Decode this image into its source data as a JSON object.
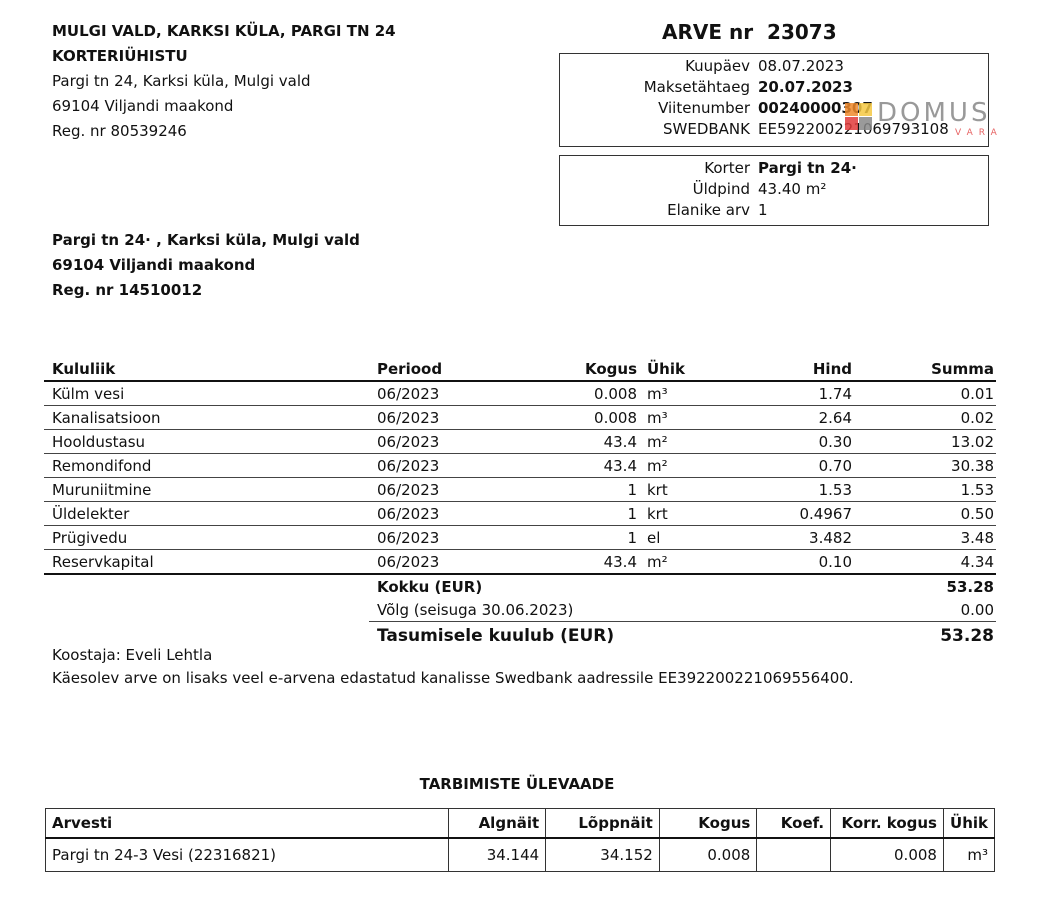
{
  "sender": {
    "name_line1": "MULGI VALD, KARKSI KÜLA, PARGI TN 24",
    "name_line2": "KORTERIÜHISTU",
    "address": "Pargi tn 24, Karksi küla, Mulgi vald",
    "postal": "69104 Viljandi maakond",
    "reg": "Reg. nr 80539246"
  },
  "recipient": {
    "address": "Pargi tn 24·   , Karksi küla, Mulgi vald",
    "postal": "69104 Viljandi maakond",
    "reg": "Reg. nr 14510012"
  },
  "invoice": {
    "title": "ARVE nr",
    "number": "23073",
    "fields": [
      {
        "label": "Kuupäev",
        "value": "08.07.2023",
        "bold": false
      },
      {
        "label": "Maksetähtaeg",
        "value": "20.07.2023",
        "bold": true
      },
      {
        "label": "Viitenumber",
        "value": "00240000307",
        "bold": true
      },
      {
        "label": "SWEDBANK",
        "value": "EE592200221069793108",
        "bold": false
      }
    ],
    "apartment": [
      {
        "label": "Korter",
        "value": "Pargi tn 24·",
        "bold": true
      },
      {
        "label": "Üldpind",
        "value": "43.40 m²",
        "bold": false
      },
      {
        "label": "Elanike arv",
        "value": "1",
        "bold": false
      }
    ]
  },
  "logo": {
    "text": "DOMUS",
    "subtext": "VARA",
    "colors": [
      "#f08a2c",
      "#f5c842",
      "#e03a3a",
      "#888888"
    ]
  },
  "items": {
    "headers": [
      "Kululiik",
      "Periood",
      "Kogus",
      "Ühik",
      "Hind",
      "Summa"
    ],
    "rows": [
      [
        "Külm vesi",
        "06/2023",
        "0.008",
        "m³",
        "1.74",
        "0.01"
      ],
      [
        "Kanalisatsioon",
        "06/2023",
        "0.008",
        "m³",
        "2.64",
        "0.02"
      ],
      [
        "Hooldustasu",
        "06/2023",
        "43.4",
        "m²",
        "0.30",
        "13.02"
      ],
      [
        "Remondifond",
        "06/2023",
        "43.4",
        "m²",
        "0.70",
        "30.38"
      ],
      [
        "Muruniitmine",
        "06/2023",
        "1",
        "krt",
        "1.53",
        "1.53"
      ],
      [
        "Üldelekter",
        "06/2023",
        "1",
        "krt",
        "0.4967",
        "0.50"
      ],
      [
        "Prügivedu",
        "06/2023",
        "1",
        "el",
        "3.482",
        "3.48"
      ],
      [
        "Reservkapital",
        "06/2023",
        "43.4",
        "m²",
        "0.10",
        "4.34"
      ]
    ],
    "total_label": "Kokku (EUR)",
    "total_value": "53.28",
    "debt_label": "Võlg (seisuga 30.06.2023)",
    "debt_value": "0.00",
    "pay_label": "Tasumisele kuulub (EUR)",
    "pay_value": "53.28"
  },
  "notes": {
    "author": "Koostaja: Eveli Lehtla",
    "einvoice": "Käesolev arve on lisaks veel e-arvena edastatud kanalisse Swedbank aadressile EE392200221069556400."
  },
  "consumption": {
    "title": "TARBIMISTE ÜLEVAADE",
    "headers": [
      "Arvesti",
      "Algnäit",
      "Lõppnäit",
      "Kogus",
      "Koef.",
      "Korr. kogus",
      "Ühik"
    ],
    "rows": [
      [
        "Pargi tn 24-3 Vesi (22316821)",
        "34.144",
        "34.152",
        "0.008",
        "",
        "0.008",
        "m³"
      ]
    ]
  }
}
